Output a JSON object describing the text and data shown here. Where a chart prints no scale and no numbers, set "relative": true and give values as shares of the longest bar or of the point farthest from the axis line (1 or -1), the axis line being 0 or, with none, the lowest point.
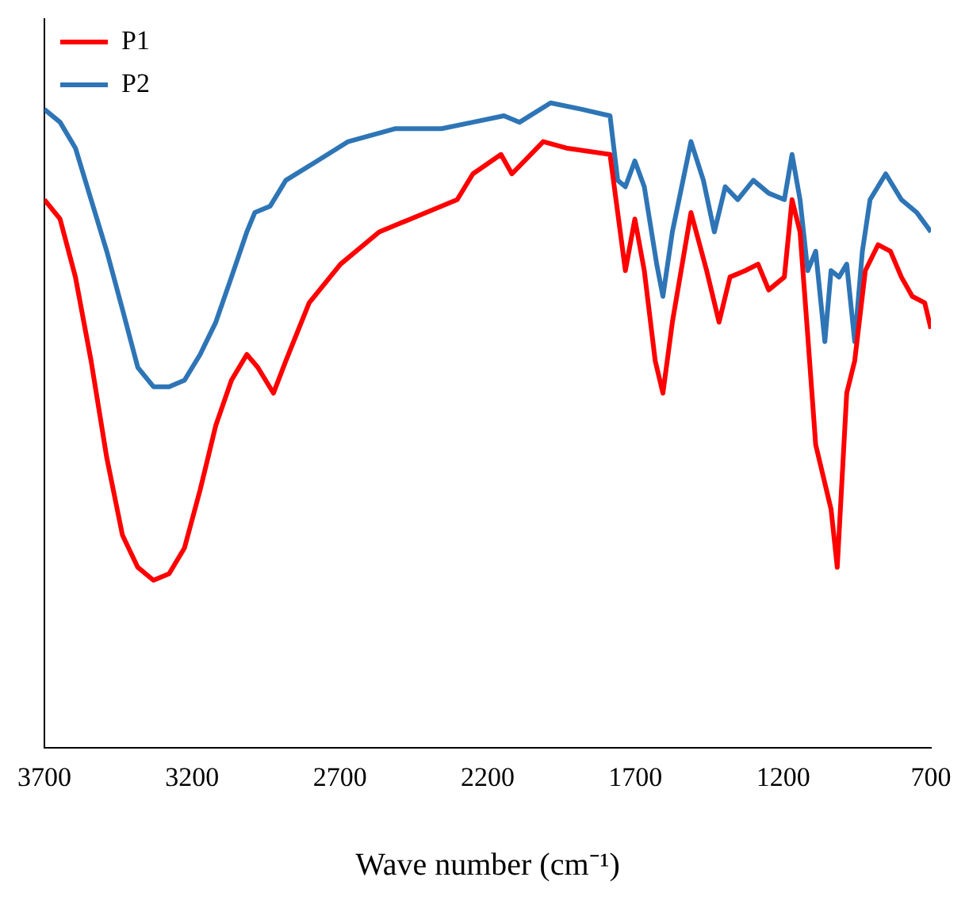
{
  "chart_data": {
    "type": "line",
    "relative": true,
    "xlabel": "Wave number (cm⁻¹)",
    "xlim": [
      3700,
      700
    ],
    "xticks": [
      3700,
      3200,
      2700,
      2200,
      1700,
      1200,
      700
    ],
    "grid": false,
    "legend": "top left",
    "marker": "none",
    "line_style": "solid",
    "series": [
      {
        "name": "P1",
        "color": "#ff0000",
        "x": [
          3700,
          3647,
          3595,
          3542,
          3489,
          3436,
          3384,
          3331,
          3278,
          3226,
          3173,
          3120,
          3067,
          3015,
          2978,
          2925,
          2883,
          2804,
          2698,
          2567,
          2408,
          2303,
          2250,
          2155,
          2118,
          2012,
          1934,
          1786,
          1760,
          1734,
          1702,
          1670,
          1633,
          1607,
          1575,
          1512,
          1459,
          1417,
          1380,
          1328,
          1285,
          1249,
          1196,
          1170,
          1143,
          1117,
          1090,
          1064,
          1038,
          1017,
          985,
          958,
          922,
          879,
          837,
          800,
          763,
          721,
          700
        ],
        "values": [
          0.85,
          0.82,
          0.73,
          0.6,
          0.45,
          0.33,
          0.28,
          0.26,
          0.27,
          0.31,
          0.4,
          0.5,
          0.57,
          0.61,
          0.59,
          0.55,
          0.6,
          0.69,
          0.75,
          0.8,
          0.83,
          0.85,
          0.89,
          0.92,
          0.89,
          0.94,
          0.93,
          0.92,
          0.83,
          0.74,
          0.82,
          0.74,
          0.6,
          0.55,
          0.66,
          0.83,
          0.74,
          0.66,
          0.73,
          0.74,
          0.75,
          0.71,
          0.73,
          0.85,
          0.8,
          0.64,
          0.47,
          0.42,
          0.37,
          0.28,
          0.55,
          0.6,
          0.74,
          0.78,
          0.77,
          0.73,
          0.7,
          0.69,
          0.65
        ]
      },
      {
        "name": "P2",
        "color": "#2e75b6",
        "x": [
          3700,
          3647,
          3595,
          3542,
          3489,
          3436,
          3384,
          3331,
          3278,
          3226,
          3173,
          3120,
          3067,
          3015,
          2988,
          2936,
          2883,
          2777,
          2672,
          2514,
          2356,
          2250,
          2145,
          2092,
          1987,
          1881,
          1786,
          1760,
          1734,
          1702,
          1670,
          1628,
          1607,
          1575,
          1512,
          1470,
          1433,
          1396,
          1354,
          1301,
          1249,
          1196,
          1170,
          1143,
          1117,
          1090,
          1059,
          1038,
          1011,
          985,
          958,
          932,
          906,
          853,
          800,
          748,
          700
        ],
        "values": [
          0.99,
          0.97,
          0.93,
          0.85,
          0.77,
          0.68,
          0.59,
          0.56,
          0.56,
          0.57,
          0.61,
          0.66,
          0.73,
          0.8,
          0.83,
          0.84,
          0.88,
          0.91,
          0.94,
          0.96,
          0.96,
          0.97,
          0.98,
          0.97,
          1.0,
          0.99,
          0.98,
          0.88,
          0.87,
          0.91,
          0.87,
          0.75,
          0.7,
          0.8,
          0.94,
          0.88,
          0.8,
          0.87,
          0.85,
          0.88,
          0.86,
          0.85,
          0.92,
          0.85,
          0.74,
          0.77,
          0.63,
          0.74,
          0.73,
          0.75,
          0.63,
          0.77,
          0.85,
          0.89,
          0.85,
          0.83,
          0.8
        ]
      }
    ]
  }
}
